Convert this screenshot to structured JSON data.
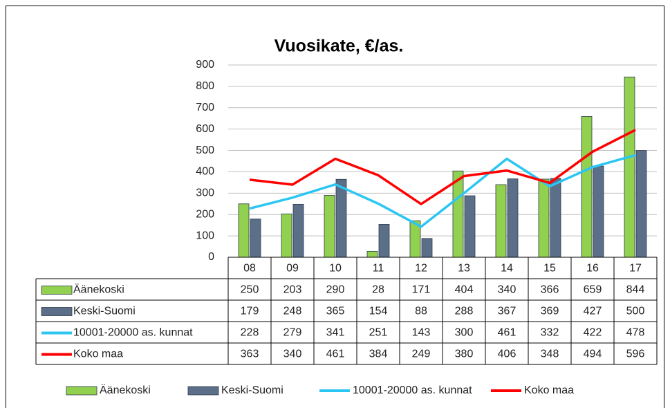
{
  "chart_data": {
    "type": "bar",
    "title": "Vuosikate, €/as.",
    "categories": [
      "08",
      "09",
      "10",
      "11",
      "12",
      "13",
      "14",
      "15",
      "16",
      "17"
    ],
    "series": [
      {
        "name": "Äänekoski",
        "type": "bar",
        "color": "#92d050",
        "values": [
          250,
          203,
          290,
          28,
          171,
          404,
          340,
          366,
          659,
          844
        ]
      },
      {
        "name": "Keski-Suomi",
        "type": "bar",
        "color": "#5b6f89",
        "values": [
          179,
          248,
          365,
          154,
          88,
          288,
          367,
          369,
          427,
          500
        ]
      },
      {
        "name": "10001-20000 as. kunnat",
        "type": "line",
        "color": "#2cc6f2",
        "values": [
          228,
          279,
          341,
          251,
          143,
          300,
          461,
          332,
          422,
          478
        ]
      },
      {
        "name": "Koko maa",
        "type": "line",
        "color": "#ff0000",
        "values": [
          363,
          340,
          461,
          384,
          249,
          380,
          406,
          348,
          494,
          596
        ]
      }
    ],
    "ylim": [
      0,
      900
    ],
    "yticks": [
      0,
      100,
      200,
      300,
      400,
      500,
      600,
      700,
      800,
      900
    ],
    "grid": true,
    "legend": "bottom"
  }
}
